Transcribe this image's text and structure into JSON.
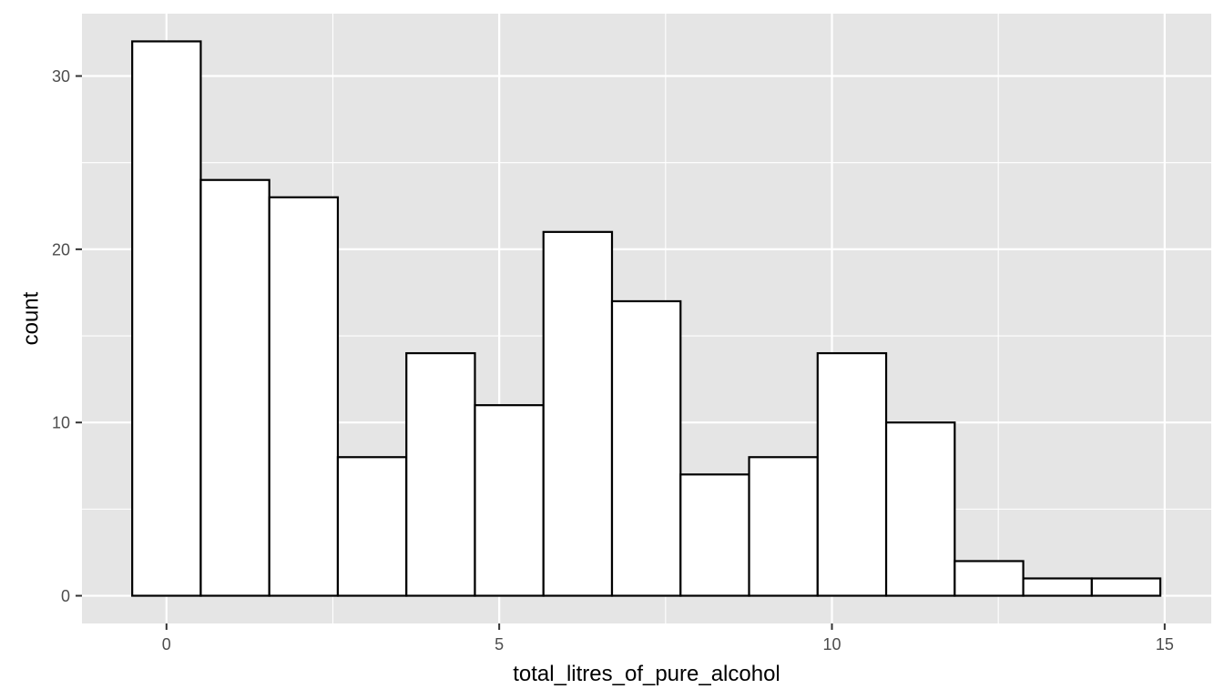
{
  "chart_data": {
    "type": "bar",
    "subtype": "histogram",
    "xlabel": "total_litres_of_pure_alcohol",
    "ylabel": "count",
    "bin_width": 1.03,
    "bins": [
      {
        "start": -0.515,
        "end": 0.515,
        "count": 32
      },
      {
        "start": 0.515,
        "end": 1.545,
        "count": 24
      },
      {
        "start": 1.545,
        "end": 2.575,
        "count": 23
      },
      {
        "start": 2.575,
        "end": 3.605,
        "count": 8
      },
      {
        "start": 3.605,
        "end": 4.635,
        "count": 14
      },
      {
        "start": 4.635,
        "end": 5.665,
        "count": 11
      },
      {
        "start": 5.665,
        "end": 6.695,
        "count": 21
      },
      {
        "start": 6.695,
        "end": 7.725,
        "count": 17
      },
      {
        "start": 7.725,
        "end": 8.755,
        "count": 7
      },
      {
        "start": 8.755,
        "end": 9.785,
        "count": 8
      },
      {
        "start": 9.785,
        "end": 10.815,
        "count": 14
      },
      {
        "start": 10.815,
        "end": 11.845,
        "count": 10
      },
      {
        "start": 11.845,
        "end": 12.875,
        "count": 2
      },
      {
        "start": 12.875,
        "end": 13.905,
        "count": 1
      },
      {
        "start": 13.905,
        "end": 14.935,
        "count": 1
      }
    ],
    "x_ticks": [
      0,
      5,
      10,
      15
    ],
    "y_ticks": [
      0,
      10,
      20,
      30
    ],
    "xlim": [
      -1.27,
      15.7
    ],
    "ylim": [
      -1.6,
      33.6
    ],
    "grid": true,
    "colors": {
      "panel_background": "#e5e5e5",
      "grid": "#ffffff",
      "bar_fill": "#ffffff",
      "bar_outline": "#000000"
    }
  }
}
